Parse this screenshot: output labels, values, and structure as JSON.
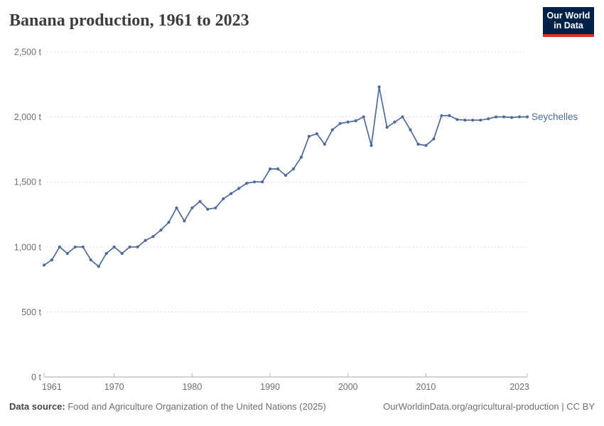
{
  "header": {
    "title": "Banana production, 1961 to 2023",
    "logo": {
      "line1": "Our World",
      "line2": "in Data",
      "bg_color": "#002147",
      "bar_color": "#d7301f"
    }
  },
  "chart_data": {
    "type": "line",
    "title": "Banana production, 1961 to 2023",
    "unit": "t",
    "grid": true,
    "legend_position": "end-of-line",
    "ylim": [
      0,
      2500
    ],
    "yticks": [
      {
        "value": 0,
        "label": "0 t"
      },
      {
        "value": 500,
        "label": "500 t"
      },
      {
        "value": 1000,
        "label": "1,000 t"
      },
      {
        "value": 1500,
        "label": "1,500 t"
      },
      {
        "value": 2000,
        "label": "2,000 t"
      },
      {
        "value": 2500,
        "label": "2,500 t"
      }
    ],
    "xticks": [
      {
        "value": 1961,
        "label": "1961"
      },
      {
        "value": 1970,
        "label": "1970"
      },
      {
        "value": 1980,
        "label": "1980"
      },
      {
        "value": 1990,
        "label": "1990"
      },
      {
        "value": 2000,
        "label": "2000"
      },
      {
        "value": 2010,
        "label": "2010"
      },
      {
        "value": 2023,
        "label": "2023"
      }
    ],
    "x": [
      1961,
      1962,
      1963,
      1964,
      1965,
      1966,
      1967,
      1968,
      1969,
      1970,
      1971,
      1972,
      1973,
      1974,
      1975,
      1976,
      1977,
      1978,
      1979,
      1980,
      1981,
      1982,
      1983,
      1984,
      1985,
      1986,
      1987,
      1988,
      1989,
      1990,
      1991,
      1992,
      1993,
      1994,
      1995,
      1996,
      1997,
      1998,
      1999,
      2000,
      2001,
      2002,
      2003,
      2004,
      2005,
      2006,
      2007,
      2008,
      2009,
      2010,
      2011,
      2012,
      2013,
      2014,
      2015,
      2016,
      2017,
      2018,
      2019,
      2020,
      2021,
      2022,
      2023
    ],
    "series": [
      {
        "name": "Seychelles",
        "color": "#4C6A9C",
        "values": [
          860,
          900,
          1000,
          950,
          1000,
          1000,
          900,
          850,
          950,
          1000,
          950,
          1000,
          1000,
          1050,
          1080,
          1130,
          1190,
          1300,
          1200,
          1300,
          1350,
          1290,
          1300,
          1370,
          1410,
          1450,
          1490,
          1500,
          1500,
          1600,
          1600,
          1550,
          1600,
          1690,
          1850,
          1870,
          1790,
          1900,
          1950,
          1960,
          1970,
          2000,
          1780,
          2230,
          1920,
          1960,
          2000,
          1900,
          1790,
          1780,
          1830,
          2010,
          2010,
          1980,
          1975,
          1975,
          1975,
          1985,
          2000,
          2000,
          1995,
          2000,
          2000
        ]
      }
    ]
  },
  "footer": {
    "source_label": "Data source:",
    "source_text": " Food and Agriculture Organization of the United Nations (2025)",
    "credit": "OurWorldinData.org/agricultural-production | CC BY"
  }
}
